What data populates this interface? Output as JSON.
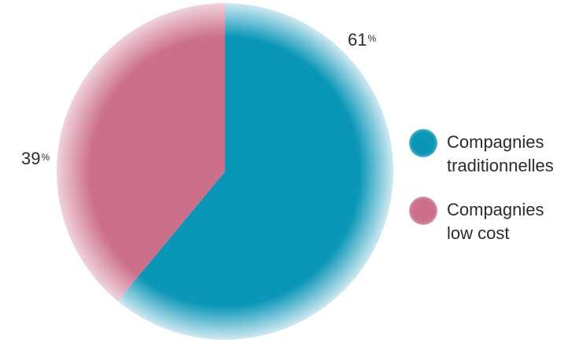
{
  "chart_data": {
    "type": "pie",
    "title": "",
    "start_angle_deg": 0,
    "direction": "clockwise",
    "slices": [
      {
        "value": 61,
        "label": "61",
        "unit": "%",
        "legend_lines": [
          "Compagnies",
          "traditionnelles"
        ],
        "color": "#0a97b7",
        "edge_color": "#cfe9f1"
      },
      {
        "value": 39,
        "label": "39",
        "unit": "%",
        "legend_lines": [
          "Compagnies",
          "low cost"
        ],
        "color": "#cc6f8b",
        "edge_color": "#f0d3dc"
      }
    ],
    "legend_position": "right"
  }
}
